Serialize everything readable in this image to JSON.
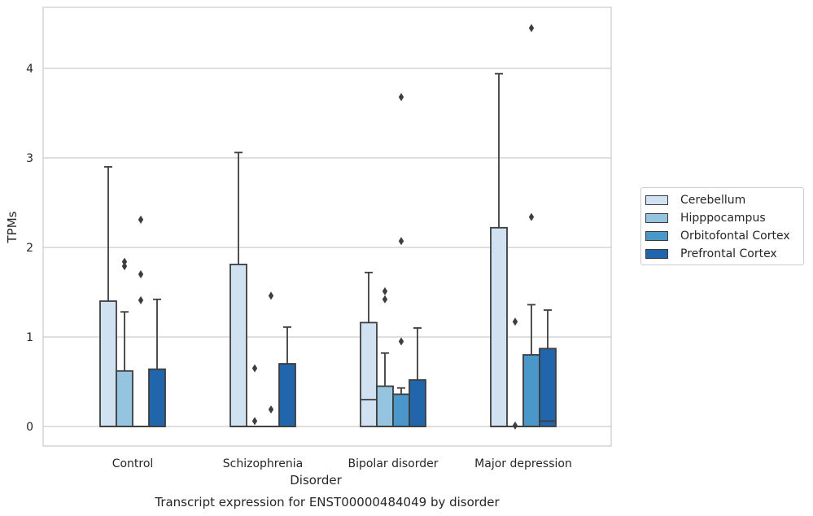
{
  "chart_data": {
    "type": "box",
    "title": "",
    "caption": "Transcript expression for ENST00000484049 by disorder",
    "xlabel": "Disorder",
    "ylabel": "TPMs",
    "ylim": [
      -0.22,
      4.7
    ],
    "yticks": [
      0,
      1,
      2,
      3,
      4
    ],
    "categories": [
      "Control",
      "Schizophrenia",
      "Bipolar disorder",
      "Major depression"
    ],
    "grid": "horizontal",
    "legend_position": "right",
    "series": [
      {
        "name": "Cerebellum",
        "color": "#d0e1f2",
        "boxes": [
          {
            "q1": 0,
            "median": 0,
            "q3": 1.4,
            "whisker_low": 0,
            "whisker_high": 2.9,
            "outliers": []
          },
          {
            "q1": 0,
            "median": 0,
            "q3": 1.81,
            "whisker_low": 0,
            "whisker_high": 3.06,
            "outliers": []
          },
          {
            "q1": 0,
            "median": 0.3,
            "q3": 1.16,
            "whisker_low": 0,
            "whisker_high": 1.72,
            "outliers": []
          },
          {
            "q1": 0,
            "median": 0,
            "q3": 2.22,
            "whisker_low": 0,
            "whisker_high": 3.94,
            "outliers": []
          }
        ]
      },
      {
        "name": "Hipppocampus",
        "color": "#94c4df",
        "boxes": [
          {
            "q1": 0,
            "median": 0,
            "q3": 0.62,
            "whisker_low": 0,
            "whisker_high": 1.28,
            "outliers": [
              1.79,
              1.84
            ]
          },
          {
            "q1": 0,
            "median": 0,
            "q3": 0,
            "whisker_low": 0,
            "whisker_high": 0,
            "outliers": [
              0.06,
              0.65
            ]
          },
          {
            "q1": 0,
            "median": 0,
            "q3": 0.45,
            "whisker_low": 0,
            "whisker_high": 0.82,
            "outliers": [
              1.42,
              1.51
            ]
          },
          {
            "q1": 0,
            "median": 0,
            "q3": 0,
            "whisker_low": 0,
            "whisker_high": 0,
            "outliers": [
              0.01,
              1.17
            ]
          }
        ]
      },
      {
        "name": "Orbitofontal Cortex",
        "color": "#4a98c9",
        "boxes": [
          {
            "q1": 0,
            "median": 0,
            "q3": 0,
            "whisker_low": 0,
            "whisker_high": 0,
            "outliers": [
              1.41,
              1.7,
              2.31
            ]
          },
          {
            "q1": 0,
            "median": 0,
            "q3": 0,
            "whisker_low": 0,
            "whisker_high": 0,
            "outliers": [
              0.19,
              1.46
            ]
          },
          {
            "q1": 0,
            "median": 0,
            "q3": 0.36,
            "whisker_low": 0,
            "whisker_high": 0.43,
            "outliers": [
              0.95,
              2.07,
              3.68
            ]
          },
          {
            "q1": 0,
            "median": 0,
            "q3": 0.8,
            "whisker_low": 0,
            "whisker_high": 1.36,
            "outliers": [
              2.34,
              4.45
            ]
          }
        ]
      },
      {
        "name": "Prefrontal Cortex",
        "color": "#2166ac",
        "boxes": [
          {
            "q1": 0,
            "median": 0,
            "q3": 0.64,
            "whisker_low": 0,
            "whisker_high": 1.42,
            "outliers": []
          },
          {
            "q1": 0,
            "median": 0,
            "q3": 0.7,
            "whisker_low": 0,
            "whisker_high": 1.11,
            "outliers": []
          },
          {
            "q1": 0,
            "median": 0,
            "q3": 0.52,
            "whisker_low": 0,
            "whisker_high": 1.1,
            "outliers": []
          },
          {
            "q1": 0,
            "median": 0.06,
            "q3": 0.87,
            "whisker_low": 0,
            "whisker_high": 1.3,
            "outliers": []
          }
        ]
      }
    ]
  }
}
